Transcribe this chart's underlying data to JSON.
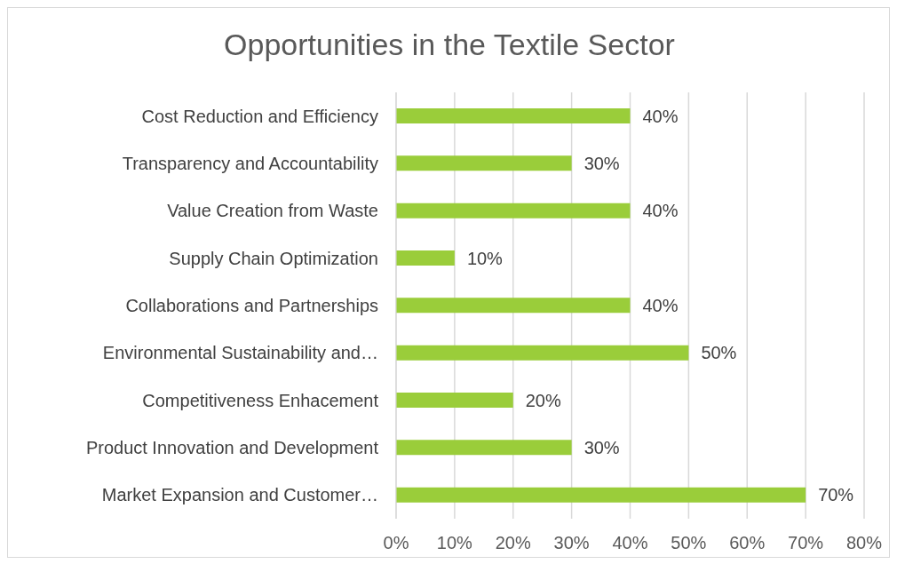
{
  "chart_data": {
    "type": "bar",
    "orientation": "horizontal",
    "title": "Opportunities in the Textile Sector",
    "categories": [
      "Cost Reduction and Efficiency",
      "Transparency and Accountability",
      "Value Creation from Waste",
      "Supply Chain Optimization",
      "Collaborations and Partnerships",
      "Environmental Sustainability and…",
      "Competitiveness Enhacement",
      "Product Innovation and Development",
      "Market Expansion and Customer…"
    ],
    "values": [
      40,
      30,
      40,
      10,
      40,
      50,
      20,
      30,
      70
    ],
    "value_labels": [
      "40%",
      "30%",
      "40%",
      "10%",
      "40%",
      "50%",
      "20%",
      "30%",
      "70%"
    ],
    "color": "#9acd3a",
    "xlim": [
      0,
      80
    ],
    "xticks": [
      {
        "value": 0,
        "label": "0%"
      },
      {
        "value": 10,
        "label": "10%"
      },
      {
        "value": 20,
        "label": "20%"
      },
      {
        "value": 30,
        "label": "30%"
      },
      {
        "value": 40,
        "label": "40%"
      },
      {
        "value": 50,
        "label": "50%"
      },
      {
        "value": 60,
        "label": "60%"
      },
      {
        "value": 70,
        "label": "70%"
      },
      {
        "value": 80,
        "label": "80%"
      }
    ],
    "grid": "x"
  }
}
